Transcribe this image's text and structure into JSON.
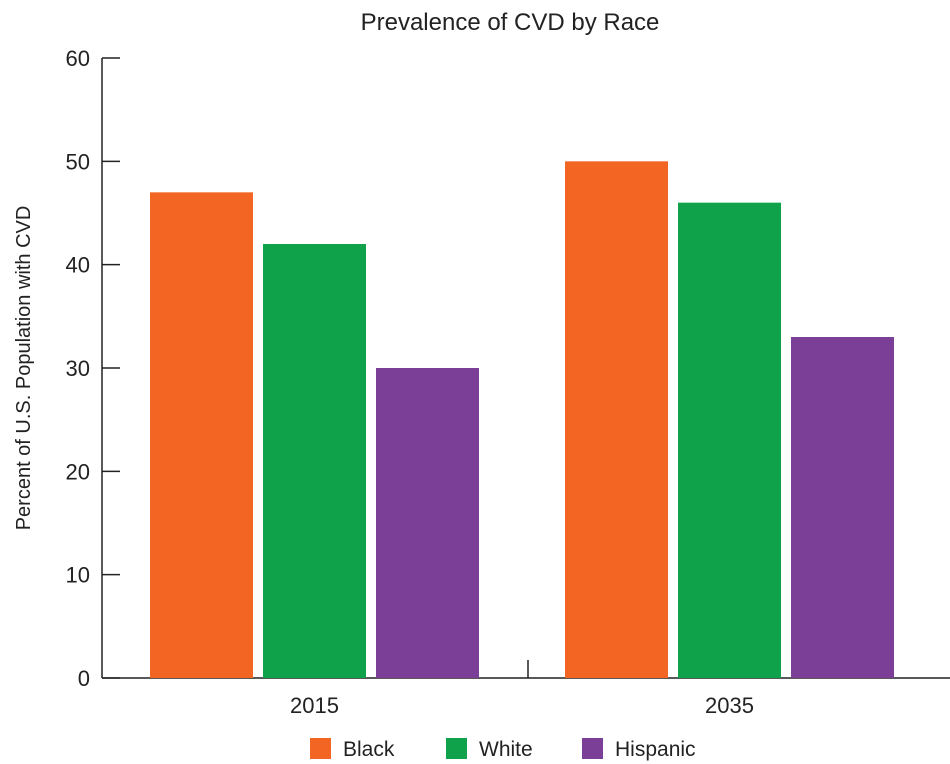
{
  "chart_data": {
    "type": "bar",
    "title": "Prevalence of CVD by Race",
    "xlabel": "",
    "ylabel": "Percent of U.S. Population with CVD",
    "ylim": [
      0,
      60
    ],
    "yticks": [
      0,
      10,
      20,
      30,
      40,
      50,
      60
    ],
    "categories": [
      "2015",
      "2035"
    ],
    "series": [
      {
        "name": "Black",
        "color": "#f26522",
        "values": [
          47,
          50
        ]
      },
      {
        "name": "White",
        "color": "#10a14b",
        "values": [
          42,
          46
        ]
      },
      {
        "name": "Hispanic",
        "color": "#7b3f98",
        "values": [
          30,
          33
        ]
      }
    ],
    "grid": false,
    "legend_position": "bottom-center"
  }
}
